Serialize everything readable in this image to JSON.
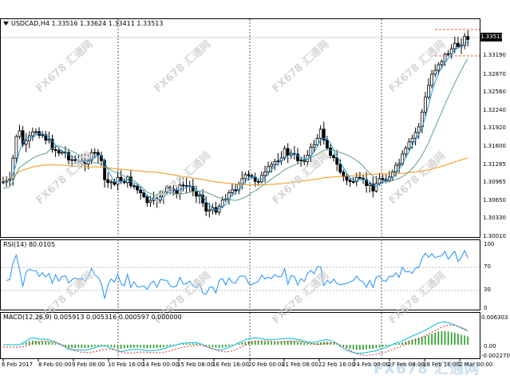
{
  "main": {
    "symbol_info": "USDCAD,H4  1.33516 1.33624 1.33411 1.33513",
    "current_price": "1.33513",
    "price_labels": [
      "1.33190",
      "1.32870",
      "1.32560",
      "1.32240",
      "1.31920",
      "1.31600",
      "1.31285",
      "1.30965",
      "1.30650",
      "1.30330",
      "1.30010"
    ]
  },
  "rsi": {
    "title": "RSI(14) 80.0105",
    "levels": [
      "100",
      "70",
      "30",
      "0"
    ]
  },
  "macd": {
    "title": "MACD(12,26,9) 0.005913 0.005316 0.000597 0.000000",
    "levels": [
      "0.006303",
      "0.00",
      "-0.002270"
    ]
  },
  "time_axis": [
    "6 Feb 2017",
    "8 Feb 00:00",
    "9 Feb 08:00",
    "10 Feb 16:00",
    "14 Feb 00:00",
    "15 Feb 08:00",
    "16 Feb 16:00",
    "20 Feb 00:00",
    "21 Feb 08:00",
    "22 Feb 16:00",
    "24 Feb 00:00",
    "27 Feb 08:00",
    "28 Feb 16:00",
    "2 Mar 00:00"
  ],
  "watermark": {
    "text": "FX678 汇通网",
    "logo": "FX678 汇通网"
  },
  "colors": {
    "ma_fast": "#1e9be9",
    "ma_mid": "#5f9e94",
    "ma_slow": "#f0960f",
    "rsi_line": "#1e90ff",
    "macd_hist": "#1f9e1f",
    "macd_line": "#00bcd4",
    "macd_signal": "#e03030",
    "ask_line": "#e8603c"
  },
  "icons": {
    "menu": "triangle-down-icon"
  }
}
